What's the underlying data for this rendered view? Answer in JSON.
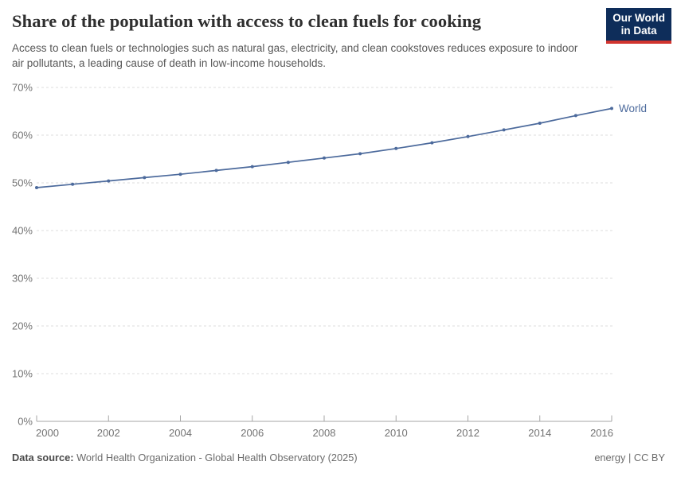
{
  "header": {
    "title": "Share of the population with access to clean fuels for cooking",
    "subtitle": "Access to clean fuels or technologies such as natural gas, electricity, and clean cookstoves reduces exposure to indoor air pollutants, a leading cause of death in low-income households."
  },
  "logo": {
    "line1": "Our World",
    "line2": "in Data"
  },
  "chart_data": {
    "type": "line",
    "title": "Share of the population with access to clean fuels for cooking",
    "x": [
      2000,
      2001,
      2002,
      2003,
      2004,
      2005,
      2006,
      2007,
      2008,
      2009,
      2010,
      2011,
      2012,
      2013,
      2014,
      2015,
      2016
    ],
    "series": [
      {
        "name": "World",
        "color": "#4c6a9c",
        "values": [
          49.0,
          49.7,
          50.4,
          51.1,
          51.8,
          52.6,
          53.4,
          54.3,
          55.2,
          56.1,
          57.2,
          58.4,
          59.7,
          61.1,
          62.5,
          64.1,
          65.6
        ]
      }
    ],
    "xlabel": "",
    "ylabel": "",
    "ylim": [
      0,
      70
    ],
    "yticks": [
      0,
      10,
      20,
      30,
      40,
      50,
      60,
      70
    ],
    "ytick_suffix": "%",
    "xticks": [
      2000,
      2002,
      2004,
      2006,
      2008,
      2010,
      2012,
      2014,
      2016
    ],
    "grid": "horizontal-dashed",
    "legend": "line-end-label",
    "line_end_label": "World"
  },
  "footer": {
    "datasource_label": "Data source:",
    "datasource_value": " World Health Organization - Global Health Observatory (2025)",
    "right_text": "energy | CC BY"
  },
  "colors": {
    "line": "#4c6a9c",
    "axis_text": "#737373",
    "grid": "#dcdcdc",
    "axis_line": "#a6a6a6",
    "logo_bg": "#0e2d5a",
    "logo_stripe": "#d1342f"
  }
}
